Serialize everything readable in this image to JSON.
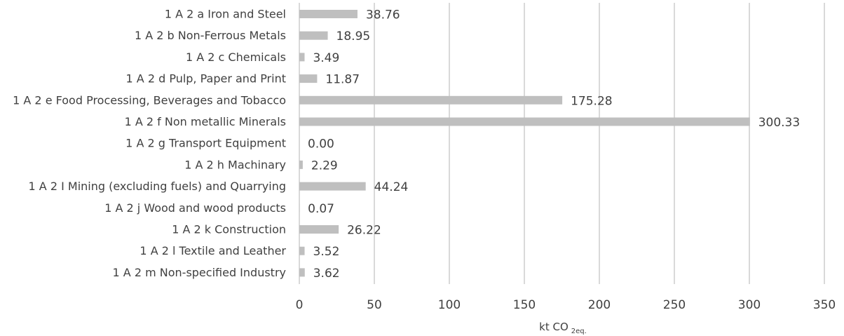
{
  "chart_data": {
    "type": "bar",
    "orientation": "horizontal",
    "categories": [
      "1 A 2 a Iron and Steel",
      "1 A 2 b Non-Ferrous Metals",
      "1 A 2 c Chemicals",
      "1 A 2 d Pulp, Paper and Print",
      "1 A 2 e Food Processing, Beverages and Tobacco",
      "1 A 2 f Non metallic Minerals",
      "1 A 2 g Transport Equipment",
      "1 A 2 h Machinary",
      "1 A 2 I Mining (excluding fuels) and Quarrying",
      "1 A 2 j Wood and wood products",
      "1 A 2 k Construction",
      "1 A 2 l Textile and Leather",
      "1 A 2 m Non-specified Industry"
    ],
    "values": [
      38.76,
      18.95,
      3.49,
      11.87,
      175.28,
      300.33,
      0.0,
      2.29,
      44.24,
      0.07,
      26.22,
      3.52,
      3.62
    ],
    "value_labels": [
      "38.76",
      "18.95",
      "3.49",
      "11.87",
      "175.28",
      "300.33",
      "0.00",
      "2.29",
      "44.24",
      "0.07",
      "26.22",
      "3.52",
      "3.62"
    ],
    "x_ticks": [
      "0",
      "50",
      "100",
      "150",
      "200",
      "250",
      "300",
      "350"
    ],
    "xlim": [
      0,
      350
    ],
    "xlabel": "kt CO",
    "xlabel_sub": "2eq.",
    "grid": true,
    "bar_color": "#bfbfbf",
    "grid_color": "#d9d9d9",
    "text_color": "#404040"
  }
}
